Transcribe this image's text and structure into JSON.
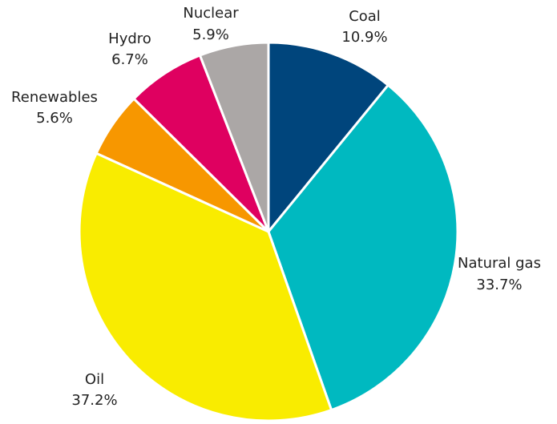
{
  "chart_data": {
    "type": "pie",
    "title": "",
    "slices": [
      {
        "label": "Coal",
        "value_label": "10.9%",
        "value": 10.9,
        "color": "#00457c"
      },
      {
        "label": "Natural gas",
        "value_label": "33.7%",
        "value": 33.7,
        "color": "#00b9c0"
      },
      {
        "label": "Oil",
        "value_label": "37.2%",
        "value": 37.2,
        "color": "#f9ec00"
      },
      {
        "label": "Renewables",
        "value_label": "5.6%",
        "value": 5.6,
        "color": "#f79700"
      },
      {
        "label": "Hydro",
        "value_label": "6.7%",
        "value": 6.7,
        "color": "#df0060"
      },
      {
        "label": "Nuclear",
        "value_label": "5.9%",
        "value": 5.9,
        "color": "#aba7a6"
      }
    ],
    "start_angle": "12 o'clock",
    "direction": "clockwise",
    "slice_border_color": "#ffffff",
    "legend": "none (labels placed next to slices)"
  }
}
